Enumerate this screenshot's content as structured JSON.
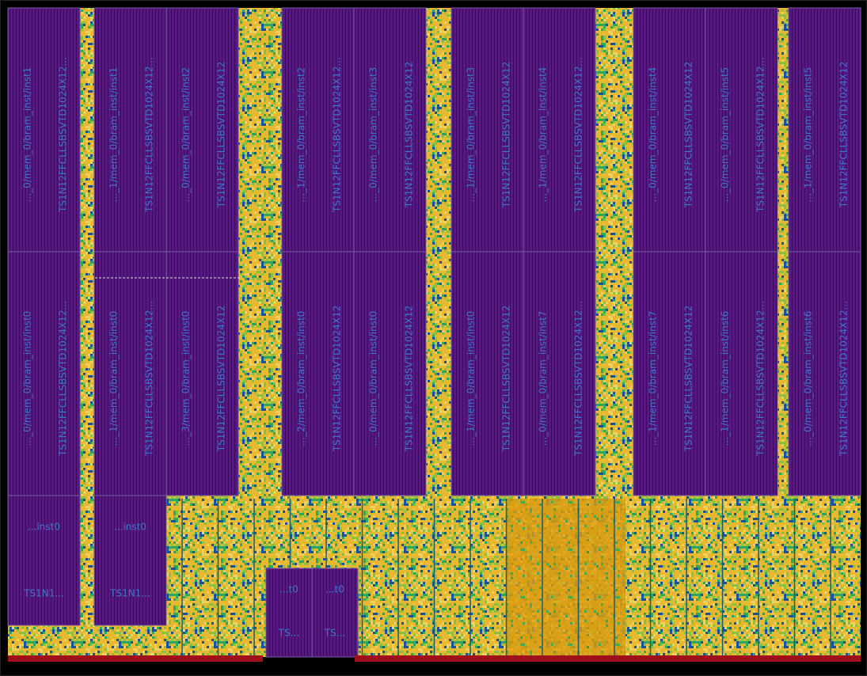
{
  "blocks": [
    {
      "instance": "..._0/mem_0/bram_inst/inst1",
      "cell": "TS1N12FFCLLSBSVTD1024X12..."
    },
    {
      "instance": "..._0/mem_0/bram_inst/inst0",
      "cell": "TS1N12FFCLLSBSVTD1024X12..."
    },
    {
      "instance": "..._1/mem_0/bram_inst/inst1",
      "cell": "TS1N12FFCLLSBSVTD1024X12..."
    },
    {
      "instance": "..._1/mem_0/bram_inst/inst0",
      "cell": "TS1N12FFCLLSBSVTD1024X12..."
    },
    {
      "instance": "..._0/mem_0/bram_inst/inst2",
      "cell": "TS1N12FFCLLSBSVTD1024X12"
    },
    {
      "instance": "..._3/mem_0/bram_inst/inst0",
      "cell": "TS1N12FFCLLSBSVTD1024X12"
    },
    {
      "instance": "..._1/mem_0/bram_inst/inst2",
      "cell": "TS1N12FFCLLSBSVTD1024X12..."
    },
    {
      "instance": "..._2/mem_0/bram_inst/inst0",
      "cell": "TS1N12FFCLLSBSVTD1024X12"
    },
    {
      "instance": "..._0/mem_0/bram_inst/inst3",
      "cell": "TS1N12FFCLLSBSVTD1024X12"
    },
    {
      "instance": "..._0/mem_0/bram_inst/inst0",
      "cell": "TS1N12FFCLLSBSVTD1024X12"
    },
    {
      "instance": "..._1/mem_0/bram_inst/inst3",
      "cell": "TS1N12FFCLLSBSVTD1024X12"
    },
    {
      "instance": "..._1/mem_0/bram_inst/inst0",
      "cell": "TS1N12FFCLLSBSVTD1024X12"
    },
    {
      "instance": "..._1/mem_0/bram_inst/inst4",
      "cell": "TS1N12FFCLLSBSVTD1024X12..."
    },
    {
      "instance": "..._0/mem_0/bram_inst/inst7",
      "cell": "TS1N12FFCLLSBSVTD1024X12..."
    },
    {
      "instance": "..._0/mem_0/bram_inst/inst4",
      "cell": "TS1N12FFCLLSBSVTD1024X12"
    },
    {
      "instance": "..._1/mem_0/bram_inst/inst7",
      "cell": "TS1N12FFCLLSBSVTD1024X12"
    },
    {
      "instance": "..._0/mem_0/bram_inst/inst5",
      "cell": "TS1N12FFCLLSBSVTD1024X12..."
    },
    {
      "instance": "..._1/mem_0/bram_inst/inst6",
      "cell": "TS1N12FFCLLSBSVTD1024X12..."
    },
    {
      "instance": "..._1/mem_0/bram_inst/inst5",
      "cell": "TS1N12FFCLLSBSVTD1024X12"
    },
    {
      "instance": "..._0/mem_0/bram_inst/inst6",
      "cell": "TS1N12FFCLLSBSVTD1024X12..."
    }
  ],
  "small_blocks": [
    {
      "instance": "...inst0",
      "cell": "TS1N1..."
    },
    {
      "instance": "...inst0",
      "cell": "TS1N1..."
    },
    {
      "instance": "...t0",
      "cell": "TS..."
    },
    {
      "instance": "...t0",
      "cell": "TS..."
    }
  ]
}
